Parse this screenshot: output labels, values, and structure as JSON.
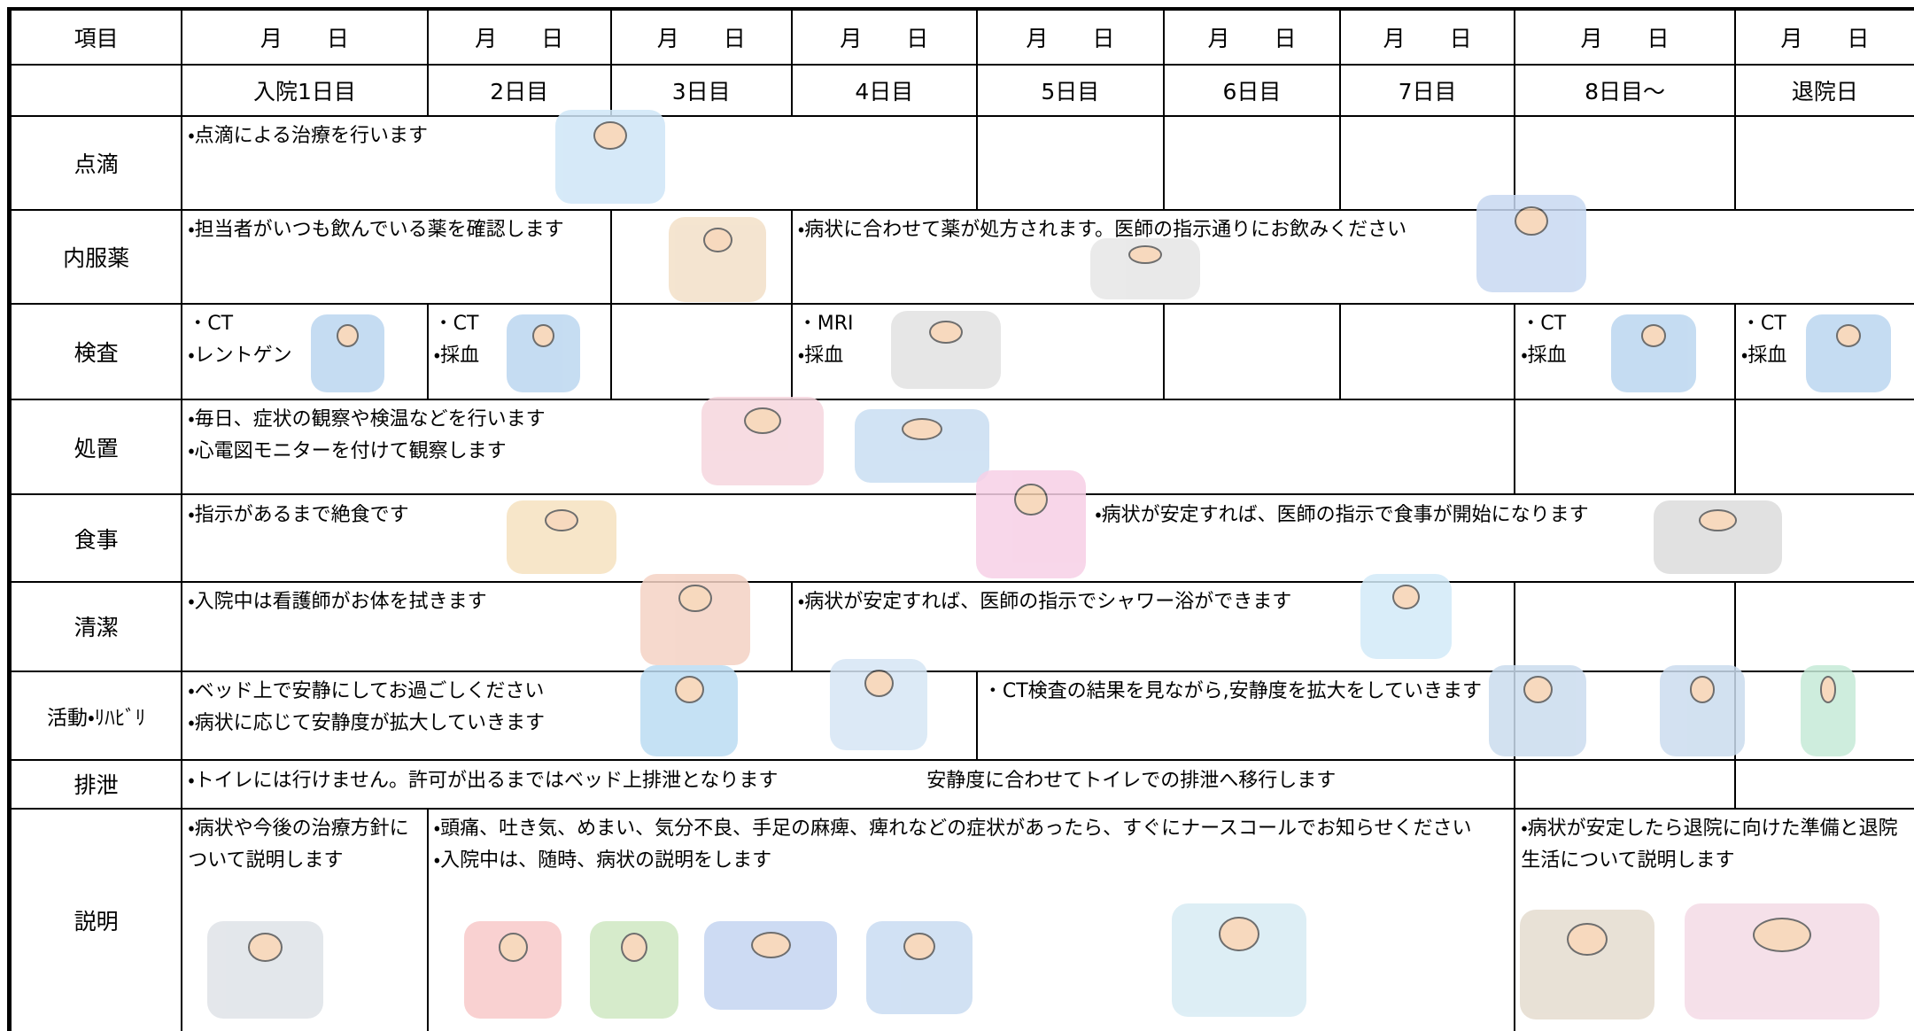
{
  "header": {
    "columns": [
      "項目",
      "月　　日",
      "月　　日",
      "月　　日",
      "月　　日",
      "月　　日",
      "月　　日",
      "月　　日",
      "月　　日",
      "月　　日"
    ]
  },
  "days": [
    "入院1日目",
    "2日目",
    "3日目",
    "4日目",
    "5日目",
    "6日目",
    "7日目",
    "8日目～",
    "退院日"
  ],
  "rows": [
    {
      "label": "点滴",
      "cells": [
        [
          "・点滴による治療を行います"
        ]
      ]
    },
    {
      "label": "内服薬",
      "cells": [
        [
          "・担当者がいつも飲んでいる薬を確認します"
        ],
        [
          "・病状に合わせて薬が処方されます。医師の指示通りにお飲みください"
        ]
      ]
    },
    {
      "label": "検査",
      "cells": [
        [
          "・CT",
          "・レントゲン"
        ],
        [
          "・CT",
          "・採血"
        ],
        [
          "・MRI",
          "・採血"
        ],
        [
          "・CT",
          "・採血"
        ],
        [
          "・CT",
          "・採血"
        ]
      ]
    },
    {
      "label": "処置",
      "cells": [
        [
          "・毎日、症状の観察や検温などを行います",
          "・心電図モニターを付けて観察します"
        ]
      ]
    },
    {
      "label": "食事",
      "cells": [
        [
          "・指示があるまで絶食です"
        ],
        [
          "・病状が安定すれば、医師の指示で食事が開始になります"
        ]
      ]
    },
    {
      "label": "清潔",
      "cells": [
        [
          "・入院中は看護師がお体を拭きます"
        ],
        [
          "・病状が安定すれば、医師の指示でシャワー浴ができます"
        ]
      ]
    },
    {
      "label": "活動・ﾘﾊﾋﾞﾘ",
      "cells": [
        [
          "・ベッド上で安静にしてお過ごしください",
          "・病状に応じて安静度が拡大していきます"
        ],
        [
          "・CT検査の結果を見ながら,安静度を拡大をしていきます"
        ]
      ]
    },
    {
      "label": "排泄",
      "cells": [
        [
          "・トイレには行けません。許可が出るまではベッド上排泄となります"
        ],
        [
          "安静度に合わせてトイレでの排泄へ移行します"
        ]
      ]
    },
    {
      "label": "説明",
      "cells": [
        [
          "・病状や今後の治療方針について説明します"
        ],
        [
          "・頭痛、吐き気、めまい、気分不良、手足の麻痺、痺れなどの症状があったら、すぐにナースコールでお知らせください",
          "・入院中は、随時、病状の説明をします"
        ],
        [
          "・病状が安定したら退院に向けた準備と退院生活について説明します"
        ]
      ]
    }
  ]
}
